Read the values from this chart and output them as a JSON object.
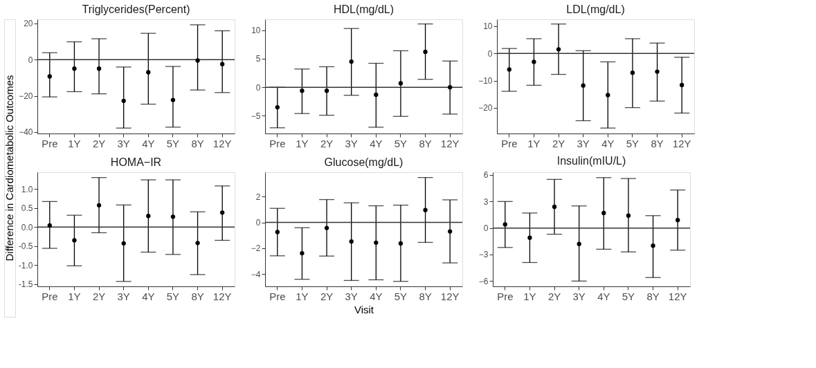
{
  "chart_data": [
    {
      "type": "scatter",
      "title": "Triglycerides(Percent)",
      "ylabel": "Difference in Cardiometabolic Outcomes",
      "categories": [
        "Pre",
        "1Y",
        "2Y",
        "3Y",
        "4Y",
        "5Y",
        "8Y",
        "12Y"
      ],
      "values": [
        -9.3,
        -5.0,
        -5.0,
        -22.8,
        -7.0,
        -22.3,
        -0.5,
        -2.5
      ],
      "errors": [
        [
          -20.6,
          3.8
        ],
        [
          -17.7,
          9.8
        ],
        [
          -18.9,
          11.5
        ],
        [
          -37.8,
          -4.1
        ],
        [
          -24.6,
          14.5
        ],
        [
          -37.3,
          -3.8
        ],
        [
          -16.8,
          19.2
        ],
        [
          -18.2,
          15.9
        ]
      ],
      "ylim": [
        -40.8,
        22.2
      ],
      "yticks": [
        -40,
        -20,
        0,
        20
      ],
      "ref_lines": [
        {
          "axis": "y",
          "value": 0
        }
      ],
      "grid": false,
      "marker": "circle",
      "color": "#000000"
    },
    {
      "type": "scatter",
      "title": "HDL(mg/dL)",
      "categories": [
        "Pre",
        "1Y",
        "2Y",
        "3Y",
        "4Y",
        "5Y",
        "8Y",
        "12Y"
      ],
      "values": [
        -3.5,
        -0.6,
        -0.6,
        4.5,
        -1.3,
        0.7,
        6.2,
        0.0
      ],
      "errors": [
        [
          -7.1,
          0.0
        ],
        [
          -4.6,
          3.2
        ],
        [
          -4.9,
          3.6
        ],
        [
          -1.4,
          10.3
        ],
        [
          -7.0,
          4.2
        ],
        [
          -5.1,
          6.4
        ],
        [
          1.4,
          11.1
        ],
        [
          -4.7,
          4.6
        ]
      ],
      "ylim": [
        -8.1,
        11.9
      ],
      "yticks": [
        -5,
        0,
        5,
        10
      ],
      "ref_lines": [
        {
          "axis": "y",
          "value": 0
        }
      ],
      "grid": false,
      "marker": "circle",
      "color": "#000000"
    },
    {
      "type": "scatter",
      "title": "LDL(mg/dL)",
      "categories": [
        "Pre",
        "1Y",
        "2Y",
        "3Y",
        "4Y",
        "5Y",
        "8Y",
        "12Y"
      ],
      "values": [
        -5.9,
        -3.1,
        1.5,
        -11.8,
        -15.3,
        -7.1,
        -6.7,
        -11.6
      ],
      "errors": [
        [
          -13.9,
          1.8
        ],
        [
          -11.7,
          5.4
        ],
        [
          -7.7,
          10.8
        ],
        [
          -24.7,
          1.0
        ],
        [
          -27.4,
          -3.1
        ],
        [
          -19.9,
          5.4
        ],
        [
          -17.5,
          3.8
        ],
        [
          -21.9,
          -1.4
        ]
      ],
      "ylim": [
        -29.4,
        12.5
      ],
      "yticks": [
        -20,
        -10,
        0,
        10
      ],
      "ref_lines": [
        {
          "axis": "y",
          "value": 0
        }
      ],
      "grid": false,
      "marker": "circle",
      "color": "#000000"
    },
    {
      "type": "scatter",
      "title": "HOMA−IR",
      "categories": [
        "Pre",
        "1Y",
        "2Y",
        "3Y",
        "4Y",
        "5Y",
        "8Y",
        "12Y"
      ],
      "values": [
        0.04,
        -0.35,
        0.57,
        -0.43,
        0.29,
        0.27,
        -0.42,
        0.38
      ],
      "errors": [
        [
          -0.56,
          0.67
        ],
        [
          -1.02,
          0.31
        ],
        [
          -0.15,
          1.3
        ],
        [
          -1.43,
          0.58
        ],
        [
          -0.66,
          1.24
        ],
        [
          -0.72,
          1.24
        ],
        [
          -1.25,
          0.4
        ],
        [
          -0.35,
          1.08
        ]
      ],
      "ylim": [
        -1.56,
        1.44
      ],
      "yticks": [
        {
          "value": -1.5,
          "label": "-1.5"
        },
        {
          "value": -1,
          "label": "-1.0"
        },
        {
          "value": -0.5,
          "label": "-0.5"
        },
        {
          "value": 0,
          "label": "0.0"
        },
        {
          "value": 0.5,
          "label": "0.5"
        },
        {
          "value": 1,
          "label": "1.0"
        }
      ],
      "ref_lines": [
        {
          "axis": "y",
          "value": 0
        }
      ],
      "grid": false,
      "marker": "circle",
      "color": "#000000"
    },
    {
      "type": "scatter",
      "title": "Glucose(mg/dL)",
      "xlabel": "Visit",
      "categories": [
        "Pre",
        "1Y",
        "2Y",
        "3Y",
        "4Y",
        "5Y",
        "8Y",
        "12Y"
      ],
      "values": [
        -0.75,
        -2.39,
        -0.43,
        -1.48,
        -1.57,
        -1.63,
        0.96,
        -0.7
      ],
      "errors": [
        [
          -2.59,
          1.09
        ],
        [
          -4.41,
          -0.41
        ],
        [
          -2.61,
          1.77
        ],
        [
          -4.5,
          1.52
        ],
        [
          -4.45,
          1.29
        ],
        [
          -4.57,
          1.34
        ],
        [
          -1.55,
          3.48
        ],
        [
          -3.14,
          1.75
        ]
      ],
      "ylim": [
        -4.96,
        3.89
      ],
      "yticks": [
        -4,
        -2,
        0,
        2
      ],
      "ref_lines": [
        {
          "axis": "y",
          "value": 0
        }
      ],
      "grid": false,
      "marker": "circle",
      "color": "#000000"
    },
    {
      "type": "scatter",
      "title": "Insulin(mIU/L)",
      "categories": [
        "Pre",
        "1Y",
        "2Y",
        "3Y",
        "4Y",
        "5Y",
        "8Y",
        "12Y"
      ],
      "values": [
        0.4,
        -1.1,
        2.4,
        -1.8,
        1.7,
        1.4,
        -2.0,
        0.9
      ],
      "errors": [
        [
          -2.2,
          3.0
        ],
        [
          -3.9,
          1.7
        ],
        [
          -0.7,
          5.5
        ],
        [
          -6.0,
          2.5
        ],
        [
          -2.4,
          5.7
        ],
        [
          -2.7,
          5.6
        ],
        [
          -5.6,
          1.4
        ],
        [
          -2.5,
          4.3
        ]
      ],
      "ylim": [
        -6.6,
        6.31
      ],
      "yticks": [
        -6,
        -3,
        0,
        3,
        6
      ],
      "ref_lines": [
        {
          "axis": "y",
          "value": 0
        }
      ],
      "grid": false,
      "marker": "circle",
      "color": "#000000"
    }
  ]
}
